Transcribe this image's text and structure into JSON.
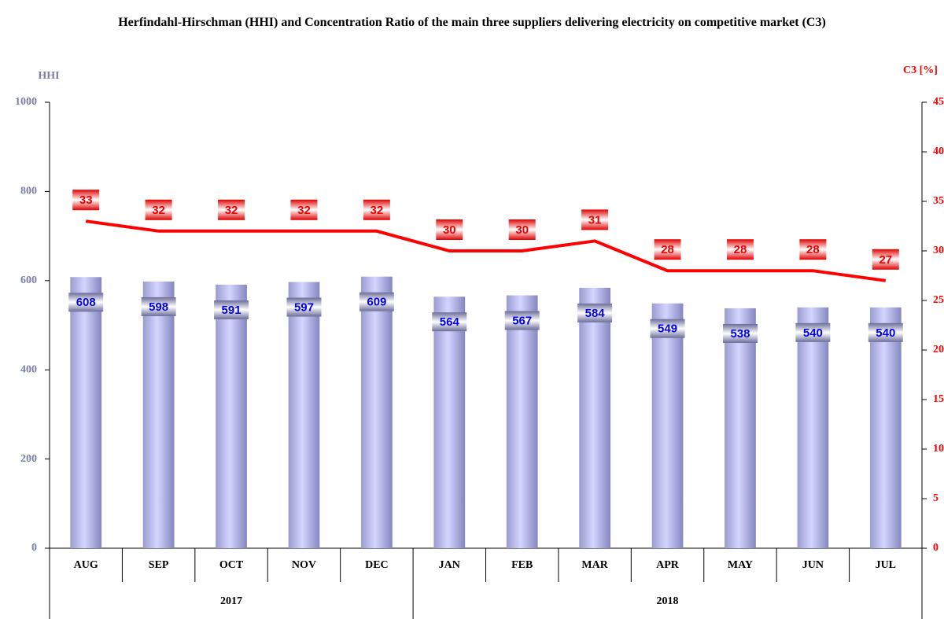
{
  "chart_data": {
    "type": "bar_line",
    "title": "Herfindahl-Hirschman (HHI) and Concentration Ratio of the main three suppliers delivering electricity on competitive market (C3)",
    "y_label": "HHI",
    "y2_label": "C3 [%]",
    "categories": [
      "AUG",
      "SEP",
      "OCT",
      "NOV",
      "DEC",
      "JAN",
      "FEB",
      "MAR",
      "APR",
      "MAY",
      "JUN",
      "JUL"
    ],
    "years": [
      "2017",
      "2017",
      "2017",
      "2017",
      "2017",
      "2018",
      "2018",
      "2018",
      "2018",
      "2018",
      "2018",
      "2018"
    ],
    "series": [
      {
        "name": "HHI",
        "type": "bar",
        "color": "#b8b9f0",
        "values": [
          608,
          598,
          591,
          597,
          609,
          564,
          567,
          584,
          549,
          538,
          540,
          540
        ]
      },
      {
        "name": "C3",
        "type": "line",
        "axis": "y2",
        "color": "#ff0000",
        "values": [
          33,
          32,
          32,
          32,
          32,
          30,
          30,
          31,
          28,
          28,
          28,
          27
        ]
      }
    ],
    "ylim": [
      0,
      1000
    ],
    "yticks": [
      0,
      200,
      400,
      600,
      800,
      1000
    ],
    "y2lim": [
      0,
      45
    ],
    "y2ticks": [
      0,
      5,
      10,
      15,
      20,
      25,
      30,
      35,
      40,
      45
    ]
  }
}
